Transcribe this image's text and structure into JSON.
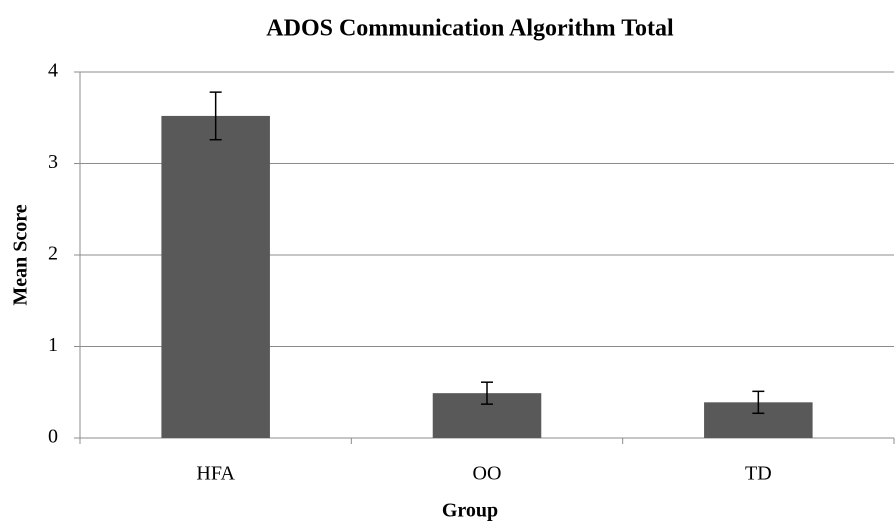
{
  "chart_data": {
    "type": "bar",
    "title": "ADOS Communication Algorithm Total",
    "x_label": "Group",
    "y_label": "Mean Score",
    "categories": [
      "HFA",
      "OO",
      "TD"
    ],
    "values": [
      3.52,
      0.49,
      0.39
    ],
    "errors": [
      0.26,
      0.12,
      0.12
    ],
    "color": "#595959",
    "ylim": [
      0,
      4
    ],
    "yticks": [
      0,
      1,
      2,
      3,
      4
    ],
    "grid": true
  }
}
